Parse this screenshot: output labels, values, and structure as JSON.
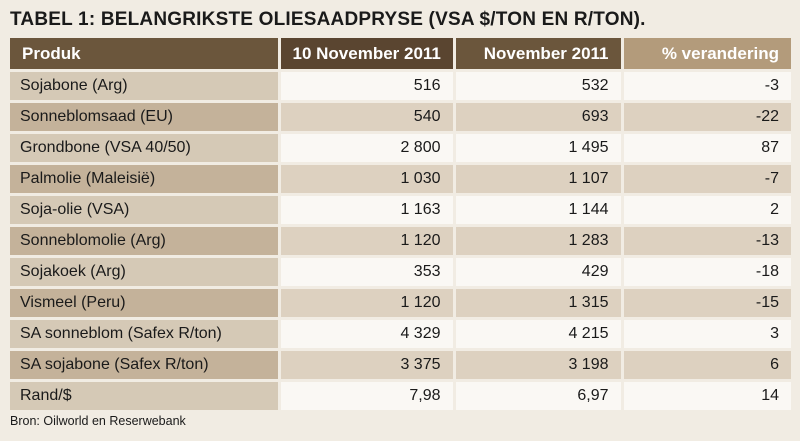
{
  "title": "TABEL 1: BELANGRIKSTE OLIESAADPRYSE (VSA $/TON EN R/TON).",
  "headers": [
    "Produk",
    "10 November 2011",
    "November 2011",
    "% verandering"
  ],
  "rows": [
    [
      "Sojabone (Arg)",
      "516",
      "532",
      "-3"
    ],
    [
      "Sonneblomsaad (EU)",
      "540",
      "693",
      "-22"
    ],
    [
      "Grondbone (VSA 40/50)",
      "2 800",
      "1 495",
      "87"
    ],
    [
      "Palmolie (Maleisië)",
      "1 030",
      "1 107",
      "-7"
    ],
    [
      "Soja-olie (VSA)",
      "1 163",
      "1 144",
      "2"
    ],
    [
      "Sonneblomolie (Arg)",
      "1 120",
      "1 283",
      "-13"
    ],
    [
      "Sojakoek (Arg)",
      "353",
      "429",
      "-18"
    ],
    [
      "Vismeel (Peru)",
      "1 120",
      "1 315",
      "-15"
    ],
    [
      "SA sonneblom (Safex R/ton)",
      "4 329",
      "4 215",
      "3"
    ],
    [
      "SA sojabone (Safex R/ton)",
      "3 375",
      "3 198",
      "6"
    ],
    [
      "Rand/$",
      "7,98",
      "6,97",
      "14"
    ]
  ],
  "source": "Bron: Oilworld en Reserwebank",
  "colors": {
    "header_dark": "#5a4530",
    "header_mid": "#6b563c",
    "header_light": "#b39b7b",
    "row_light": "#faf8f4",
    "row_dark": "#ddd1c0",
    "label_light": "#d5c9b6",
    "label_dark": "#c4b29a",
    "page_bg": "#f1ece3"
  }
}
